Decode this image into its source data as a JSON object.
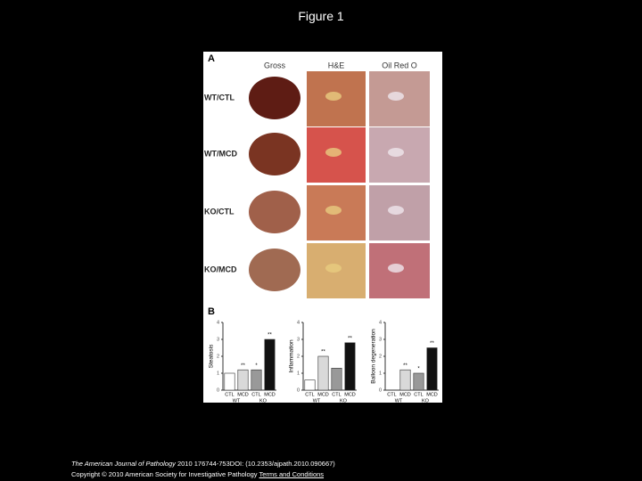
{
  "title": "Figure 1",
  "figure": {
    "panel_a": {
      "label": "A",
      "columns": [
        "Gross",
        "H&E",
        "Oil Red O"
      ],
      "rows": [
        "WT/CTL",
        "WT/MCD",
        "KO/CTL",
        "KO/MCD"
      ]
    },
    "panel_b": {
      "label": "B"
    }
  },
  "chart_data": [
    {
      "type": "bar",
      "y_label": "Steatosis",
      "categories": [
        "CTL",
        "MCD",
        "CTL",
        "MCD"
      ],
      "groups": [
        "WT",
        "KO"
      ],
      "values": [
        1,
        1.2,
        1.2,
        3
      ],
      "markers": [
        null,
        "**",
        "*",
        "**"
      ],
      "colors": [
        "#ffffff",
        "#d9d9d9",
        "#999999",
        "#111111"
      ],
      "ylim": [
        0,
        4
      ],
      "yticks": [
        0,
        1,
        2,
        3,
        4
      ]
    },
    {
      "type": "bar",
      "y_label": "Inflammation",
      "categories": [
        "CTL",
        "MCD",
        "CTL",
        "MCD"
      ],
      "groups": [
        "WT",
        "KO"
      ],
      "values": [
        0.6,
        2,
        1.3,
        2.8
      ],
      "markers": [
        null,
        "**",
        null,
        "**"
      ],
      "colors": [
        "#ffffff",
        "#d9d9d9",
        "#999999",
        "#111111"
      ],
      "ylim": [
        0,
        4
      ],
      "yticks": [
        0,
        1,
        2,
        3,
        4
      ]
    },
    {
      "type": "bar",
      "y_label": "Balloon degeneration",
      "categories": [
        "CTL",
        "MCD",
        "CTL",
        "MCD"
      ],
      "groups": [
        "WT",
        "KO"
      ],
      "values": [
        null,
        1.2,
        1,
        2.5
      ],
      "markers": [
        null,
        "**",
        "*",
        "**"
      ],
      "colors": [
        "#ffffff",
        "#d9d9d9",
        "#999999",
        "#111111"
      ],
      "ylim": [
        0,
        4
      ],
      "yticks": [
        0,
        1,
        2,
        3,
        4
      ]
    }
  ],
  "footer": {
    "journal": "The American Journal of Pathology",
    "citation": "2010 176744-753DOI: (10.2353/ajpath.2010.090667)",
    "copyright": "Copyright © 2010 American Society for Investigative Pathology",
    "link": "Terms and Conditions"
  }
}
